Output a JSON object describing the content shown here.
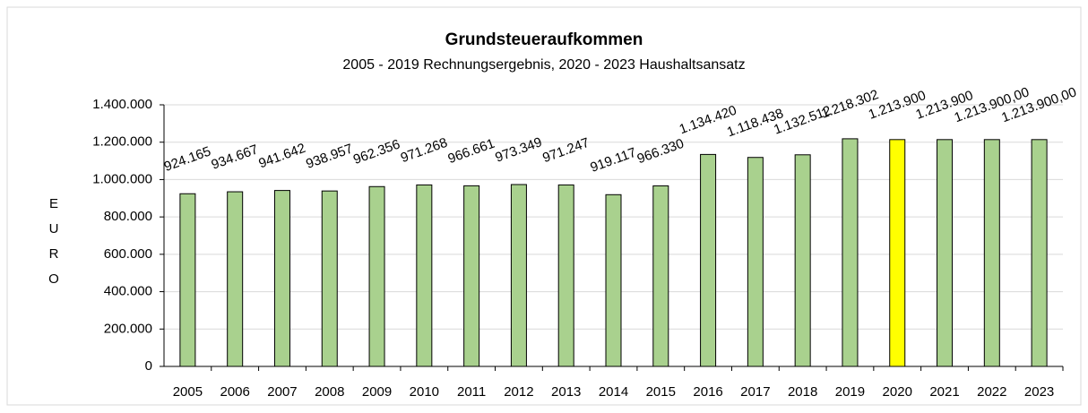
{
  "chart_data": {
    "type": "bar",
    "title": "Grundsteueraufkommen",
    "subtitle": "2005 - 2019 Rechnungsergebnis, 2020 - 2023 Haushaltsansatz",
    "y_label": "EURO",
    "categories": [
      "2005",
      "2006",
      "2007",
      "2008",
      "2009",
      "2010",
      "2011",
      "2012",
      "2013",
      "2014",
      "2015",
      "2016",
      "2017",
      "2018",
      "2019",
      "2020",
      "2021",
      "2022",
      "2023"
    ],
    "values": [
      924165,
      934667,
      941642,
      938957,
      962356,
      971268,
      966661,
      973349,
      971247,
      919117,
      966330,
      1134420,
      1118438,
      1132512,
      1218302,
      1213900,
      1213900,
      1213900,
      1213900
    ],
    "value_labels": [
      "924.165",
      "934.667",
      "941.642",
      "938.957",
      "962.356",
      "971.268",
      "966.661",
      "973.349",
      "971.247",
      "919.117",
      "966.330",
      "1.134.420",
      "1.118.438",
      "1.132.512",
      "1.218.302",
      "1.213.900",
      "1.213.900",
      "1.213.900,00",
      "1.213.900,00"
    ],
    "colors": [
      "#a9d18e",
      "#a9d18e",
      "#a9d18e",
      "#a9d18e",
      "#a9d18e",
      "#a9d18e",
      "#a9d18e",
      "#a9d18e",
      "#a9d18e",
      "#a9d18e",
      "#a9d18e",
      "#a9d18e",
      "#a9d18e",
      "#a9d18e",
      "#a9d18e",
      "#ffff00",
      "#a9d18e",
      "#a9d18e",
      "#a9d18e"
    ],
    "ylim": [
      0,
      1400000
    ],
    "yticks": [
      0,
      {
        "value": 200000,
        "label": "200.000"
      },
      {
        "value": 400000,
        "label": "400.000"
      },
      {
        "value": 600000,
        "label": "600.000"
      },
      {
        "value": 800000,
        "label": "800.000"
      },
      {
        "value": 1000000,
        "label": "1.000.000"
      },
      {
        "value": 1200000,
        "label": "1.200.000"
      },
      {
        "value": 1400000,
        "label": "1.400.000"
      }
    ],
    "grid": true
  }
}
